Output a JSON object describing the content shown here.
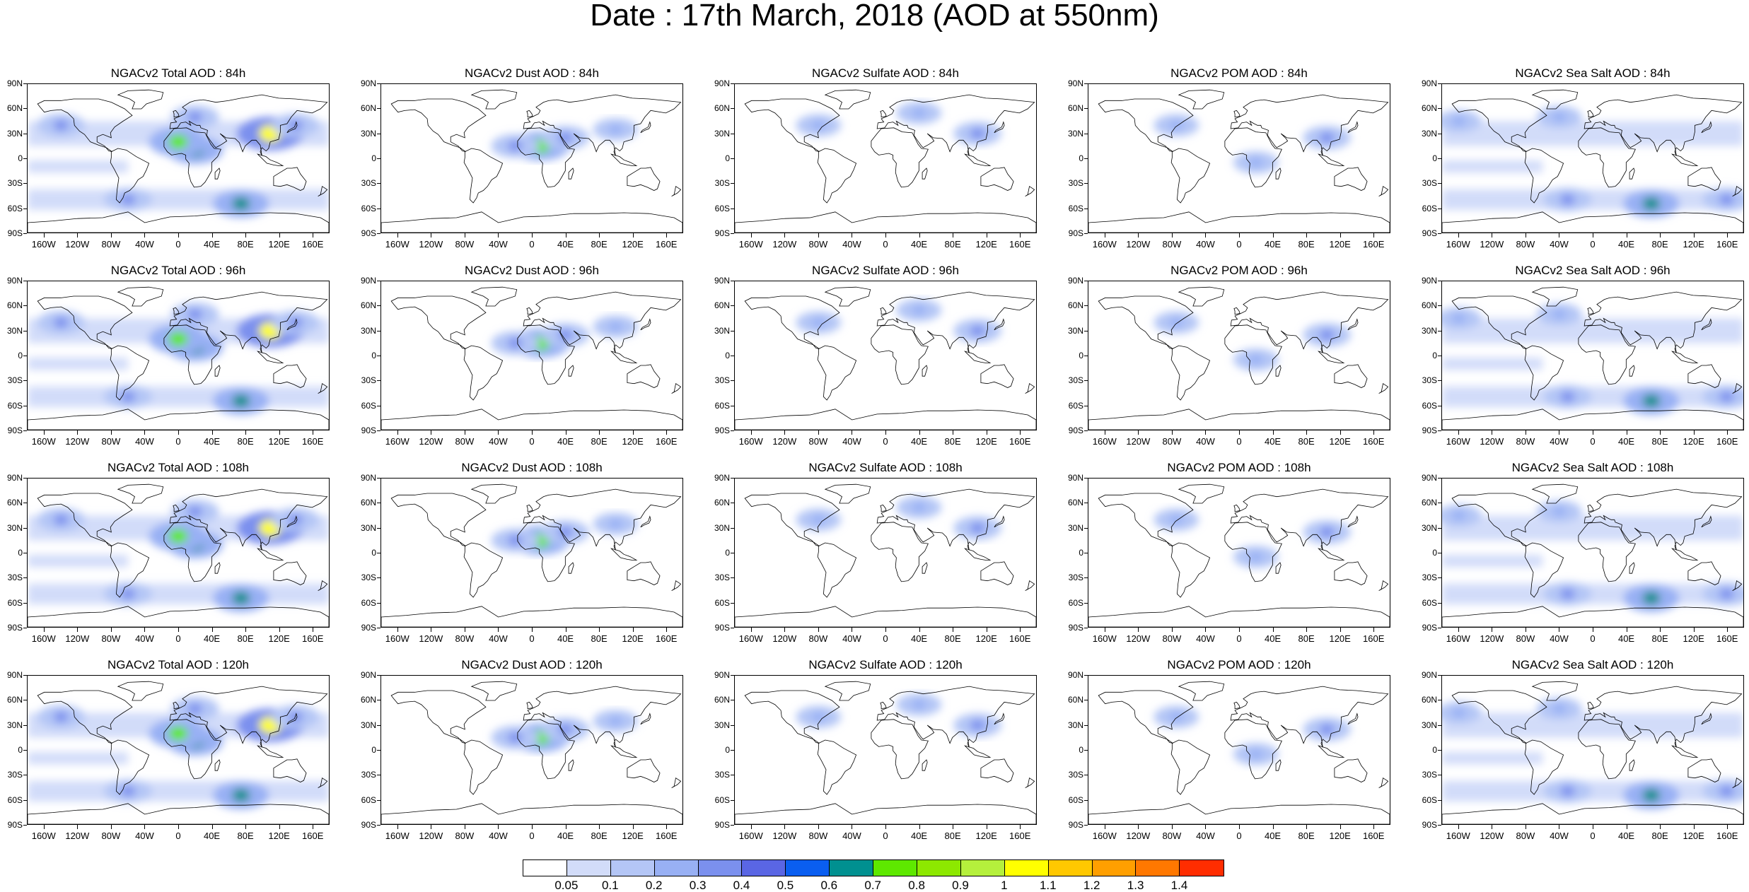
{
  "title": "Date : 17th March, 2018 (AOD at 550nm)",
  "lat_labels": [
    "90N",
    "60N",
    "30N",
    "0",
    "30S",
    "60S",
    "90S"
  ],
  "lon_labels": [
    "160W",
    "120W",
    "80W",
    "40W",
    "0",
    "40E",
    "80E",
    "120E",
    "160E"
  ],
  "panels": [
    {
      "title": "NGACv2 Total AOD : 84h",
      "variable": "total"
    },
    {
      "title": "NGACv2 Dust AOD : 84h",
      "variable": "dust"
    },
    {
      "title": "NGACv2 Sulfate AOD : 84h",
      "variable": "sulfate"
    },
    {
      "title": "NGACv2 POM AOD : 84h",
      "variable": "pom"
    },
    {
      "title": "NGACv2 Sea Salt AOD : 84h",
      "variable": "seasalt"
    },
    {
      "title": "NGACv2 Total AOD : 96h",
      "variable": "total"
    },
    {
      "title": "NGACv2 Dust AOD : 96h",
      "variable": "dust"
    },
    {
      "title": "NGACv2 Sulfate AOD : 96h",
      "variable": "sulfate"
    },
    {
      "title": "NGACv2 POM AOD : 96h",
      "variable": "pom"
    },
    {
      "title": "NGACv2 Sea Salt AOD : 96h",
      "variable": "seasalt"
    },
    {
      "title": "NGACv2 Total AOD : 108h",
      "variable": "total"
    },
    {
      "title": "NGACv2 Dust AOD : 108h",
      "variable": "dust"
    },
    {
      "title": "NGACv2 Sulfate AOD : 108h",
      "variable": "sulfate"
    },
    {
      "title": "NGACv2 POM AOD : 108h",
      "variable": "pom"
    },
    {
      "title": "NGACv2 Sea Salt AOD : 108h",
      "variable": "seasalt"
    },
    {
      "title": "NGACv2 Total AOD : 120h",
      "variable": "total"
    },
    {
      "title": "NGACv2 Dust AOD : 120h",
      "variable": "dust"
    },
    {
      "title": "NGACv2 Sulfate AOD : 120h",
      "variable": "sulfate"
    },
    {
      "title": "NGACv2 POM AOD : 120h",
      "variable": "pom"
    },
    {
      "title": "NGACv2 Sea Salt  AOD : 120h",
      "variable": "seasalt"
    }
  ],
  "colorbar": {
    "labels": [
      "0.05",
      "0.1",
      "0.2",
      "0.3",
      "0.4",
      "0.5",
      "0.6",
      "0.7",
      "0.8",
      "0.9",
      "1",
      "1.1",
      "1.2",
      "1.3",
      "1.4"
    ],
    "colors": [
      "#ffffff",
      "#d2dcf9",
      "#b4c6f6",
      "#98b0f4",
      "#7b90ee",
      "#5a66e4",
      "#0a5ef0",
      "#009090",
      "#5ee800",
      "#8de800",
      "#b5f03c",
      "#ffff00",
      "#ffc800",
      "#ff9f00",
      "#ff7800",
      "#ff2d00"
    ]
  },
  "aerosol_features": {
    "total": [
      {
        "lon": 20,
        "lat": 10,
        "value": 0.6
      },
      {
        "lon": 0,
        "lat": 20,
        "value": 0.7
      },
      {
        "lon": 110,
        "lat": 30,
        "value": 1.0
      },
      {
        "lon": 75,
        "lat": -55,
        "value": 0.6
      },
      {
        "lon": -60,
        "lat": -50,
        "value": 0.3
      },
      {
        "lon": -140,
        "lat": 40,
        "value": 0.3
      },
      {
        "lon": 140,
        "lat": 40,
        "value": 0.3
      },
      {
        "lon": 20,
        "lat": 50,
        "value": 0.3
      }
    ],
    "dust": [
      {
        "lon": 10,
        "lat": 15,
        "value": 0.7
      },
      {
        "lon": -20,
        "lat": 15,
        "value": 0.3
      },
      {
        "lon": 40,
        "lat": 25,
        "value": 0.3
      },
      {
        "lon": 100,
        "lat": 35,
        "value": 0.2
      }
    ],
    "sulfate": [
      {
        "lon": 110,
        "lat": 30,
        "value": 0.3
      },
      {
        "lon": 40,
        "lat": 55,
        "value": 0.2
      },
      {
        "lon": -80,
        "lat": 40,
        "value": 0.2
      }
    ],
    "pom": [
      {
        "lon": 105,
        "lat": 25,
        "value": 0.3
      },
      {
        "lon": 20,
        "lat": -5,
        "value": 0.2
      },
      {
        "lon": -75,
        "lat": 40,
        "value": 0.2
      }
    ],
    "seasalt": [
      {
        "lon": 70,
        "lat": -55,
        "value": 0.6
      },
      {
        "lon": -30,
        "lat": -50,
        "value": 0.3
      },
      {
        "lon": 160,
        "lat": -50,
        "value": 0.3
      },
      {
        "lon": -160,
        "lat": 45,
        "value": 0.2
      },
      {
        "lon": -40,
        "lat": 50,
        "value": 0.2
      }
    ]
  }
}
